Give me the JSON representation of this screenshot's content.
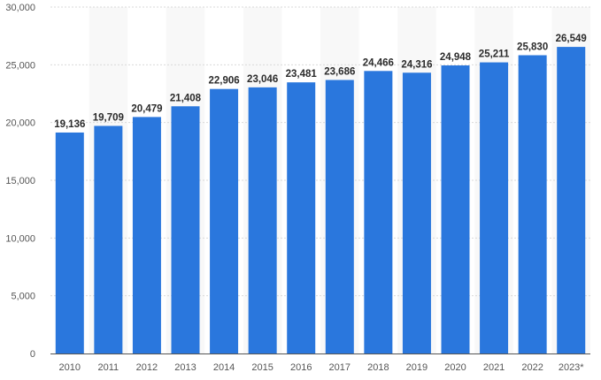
{
  "chart_data": {
    "type": "bar",
    "categories": [
      "2010",
      "2011",
      "2012",
      "2013",
      "2014",
      "2015",
      "2016",
      "2017",
      "2018",
      "2019",
      "2020",
      "2021",
      "2022",
      "2023*"
    ],
    "values": [
      19136,
      19709,
      20479,
      21408,
      22906,
      23046,
      23481,
      23686,
      24466,
      24316,
      24948,
      25211,
      25830,
      26549
    ],
    "value_labels": [
      "19,136",
      "19,709",
      "20,479",
      "21,408",
      "22,906",
      "23,046",
      "23,481",
      "23,686",
      "24,466",
      "24,316",
      "24,948",
      "25,211",
      "25,830",
      "26,549"
    ],
    "ylim": [
      0,
      30000
    ],
    "yticks": [
      0,
      5000,
      10000,
      15000,
      20000,
      25000,
      30000
    ],
    "ytick_labels": [
      "0",
      "5,000",
      "10,000",
      "15,000",
      "20,000",
      "25,000",
      "30,000"
    ],
    "title": "",
    "xlabel": "",
    "ylabel": "",
    "grid": true,
    "alternating_column_bands": true,
    "colors": {
      "bar": "#2a77dd",
      "band": "#f8f8f8",
      "grid": "#d9d9d9",
      "axis": "#555555",
      "tick_text": "#555555",
      "label_text": "#2b2b2b"
    }
  }
}
